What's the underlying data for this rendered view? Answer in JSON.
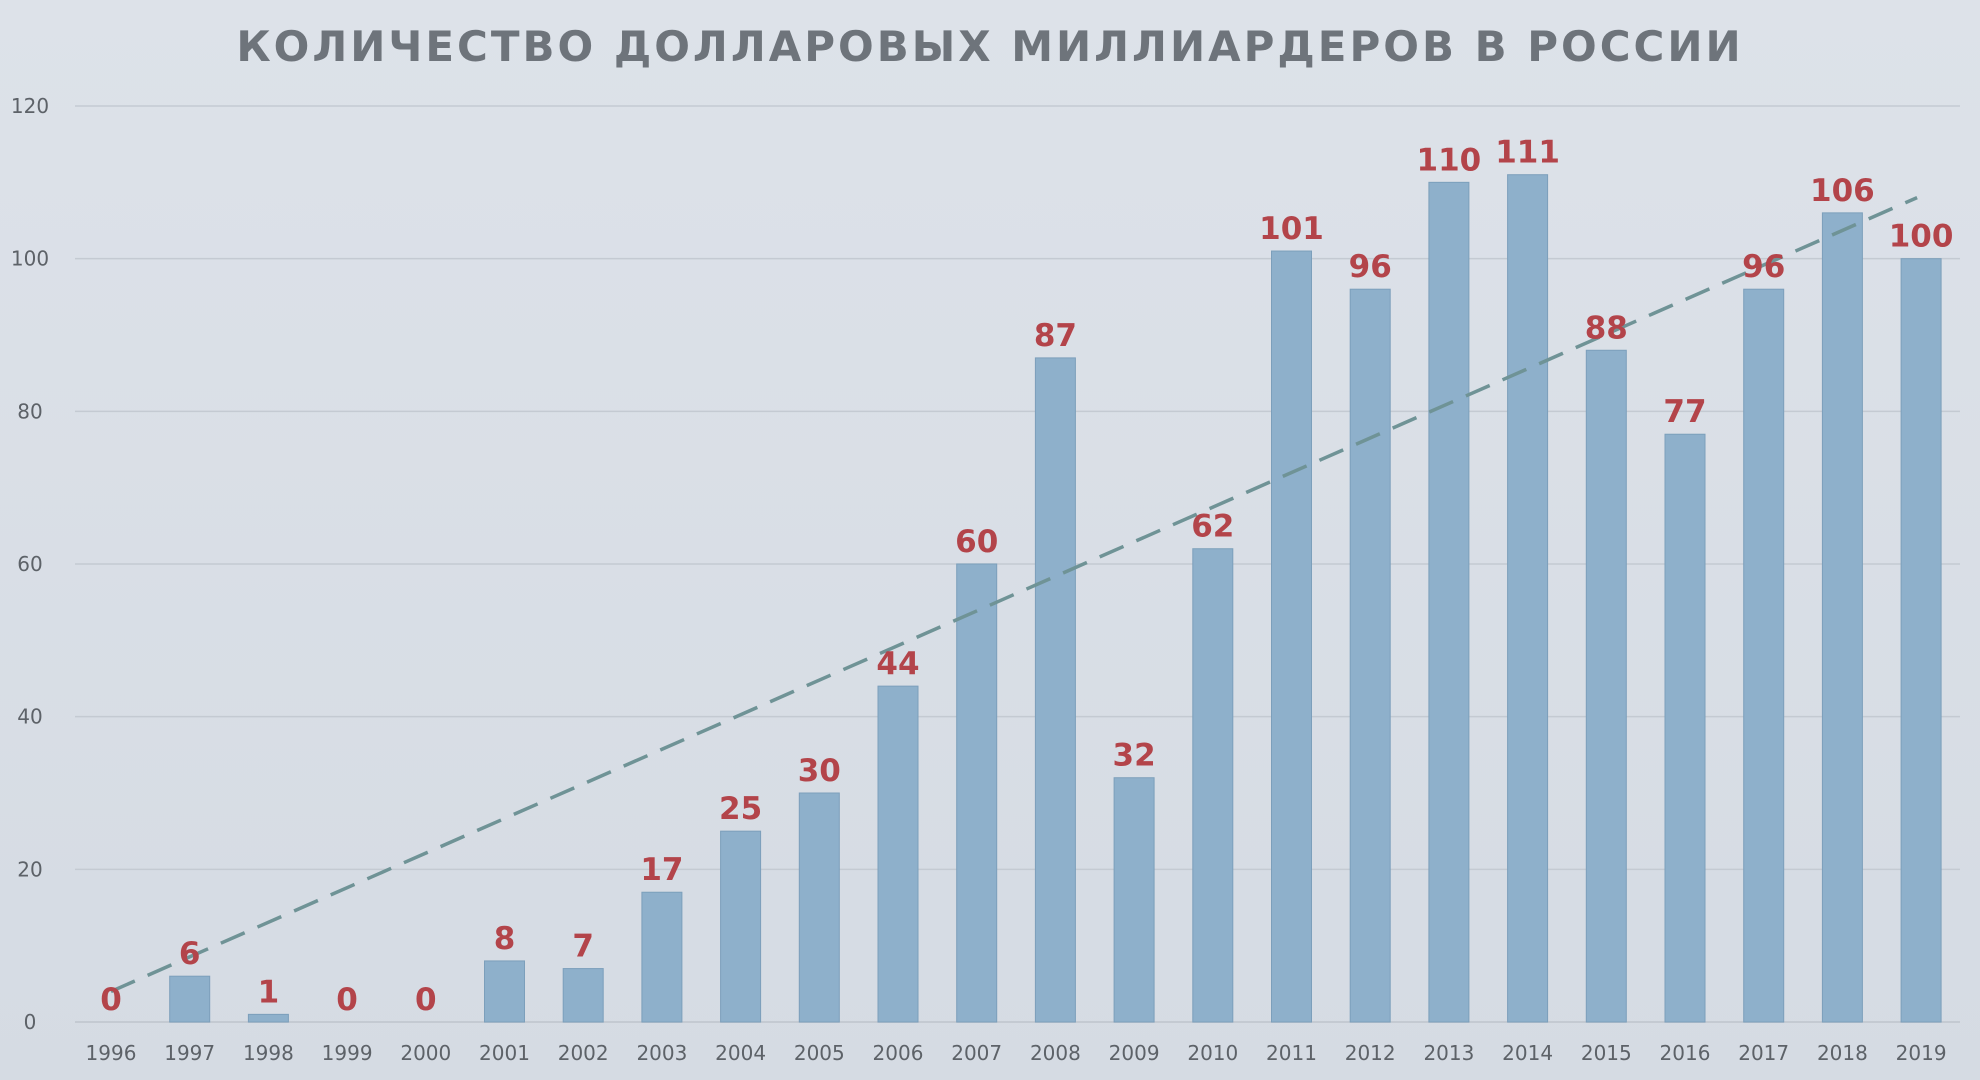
{
  "chart_data": {
    "type": "bar",
    "title": "КОЛИЧЕСТВО ДОЛЛАРОВЫХ МИЛЛИАРДЕРОВ В РОССИИ",
    "xlabel": "",
    "ylabel": "",
    "ylim": [
      0,
      120
    ],
    "yticks": [
      "0",
      "20",
      "40",
      "60",
      "80",
      "100",
      "120"
    ],
    "grid": true,
    "trendline": {
      "type": "linear",
      "style": "dashed",
      "start": 4,
      "end": 108
    },
    "categories": [
      "1996",
      "1997",
      "1998",
      "1999",
      "2000",
      "2001",
      "2002",
      "2003",
      "2004",
      "2005",
      "2006",
      "2007",
      "2008",
      "2009",
      "2010",
      "2011",
      "2012",
      "2013",
      "2014",
      "2015",
      "2016",
      "2017",
      "2018",
      "2019"
    ],
    "values": [
      0,
      6,
      1,
      0,
      0,
      8,
      7,
      17,
      25,
      30,
      44,
      60,
      87,
      32,
      62,
      101,
      96,
      110,
      111,
      88,
      77,
      96,
      106,
      100
    ],
    "data_labels": [
      "0",
      "6",
      "1",
      "0",
      "0",
      "8",
      "7",
      "17",
      "25",
      "30",
      "44",
      "60",
      "87",
      "32",
      "62",
      "101",
      "96",
      "110",
      "111",
      "88",
      "77",
      "96",
      "106",
      "100"
    ],
    "colors": {
      "bar": "#8eb0cb",
      "bar_edge": "#7c9fbb",
      "label": "#b3444a",
      "trend": "#6f9396",
      "grid": "#c4cad2"
    }
  }
}
